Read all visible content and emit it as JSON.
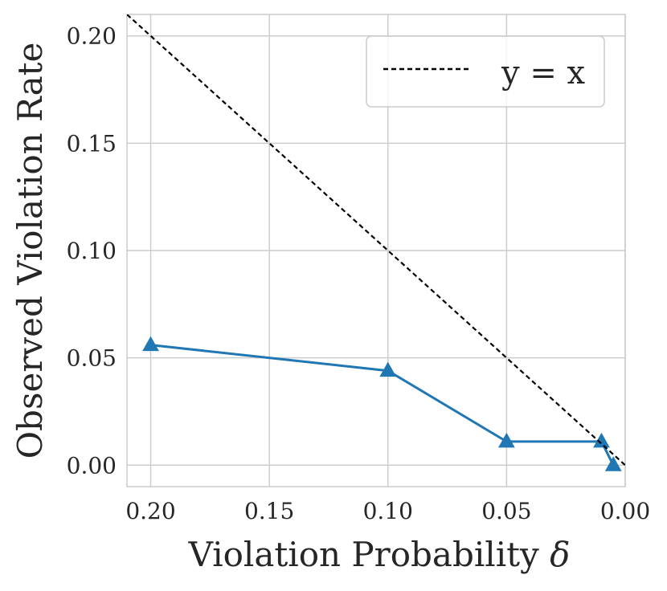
{
  "chart_data": {
    "type": "line",
    "title": "",
    "xlabel": "Violation Probability",
    "xlabel_symbol": "δ",
    "ylabel": "Observed Violation Rate",
    "x_reversed": true,
    "xlim": [
      0.21,
      0.0
    ],
    "ylim": [
      -0.01,
      0.21
    ],
    "x_ticks": [
      "0.20",
      "0.15",
      "0.10",
      "0.05",
      "0.00"
    ],
    "y_ticks": [
      "0.00",
      "0.05",
      "0.10",
      "0.15",
      "0.20"
    ],
    "grid": true,
    "legend_position": "top-right",
    "series": [
      {
        "color": "#1f77b4",
        "marker": "triangle",
        "x": [
          0.2,
          0.1,
          0.05,
          0.01,
          0.005
        ],
        "y": [
          0.056,
          0.044,
          0.011,
          0.011,
          0.0
        ]
      },
      {
        "name": "y = x",
        "color": "#000000",
        "style": "dashed",
        "x": [
          0.21,
          0.0
        ],
        "y": [
          0.21,
          0.0
        ]
      }
    ]
  }
}
